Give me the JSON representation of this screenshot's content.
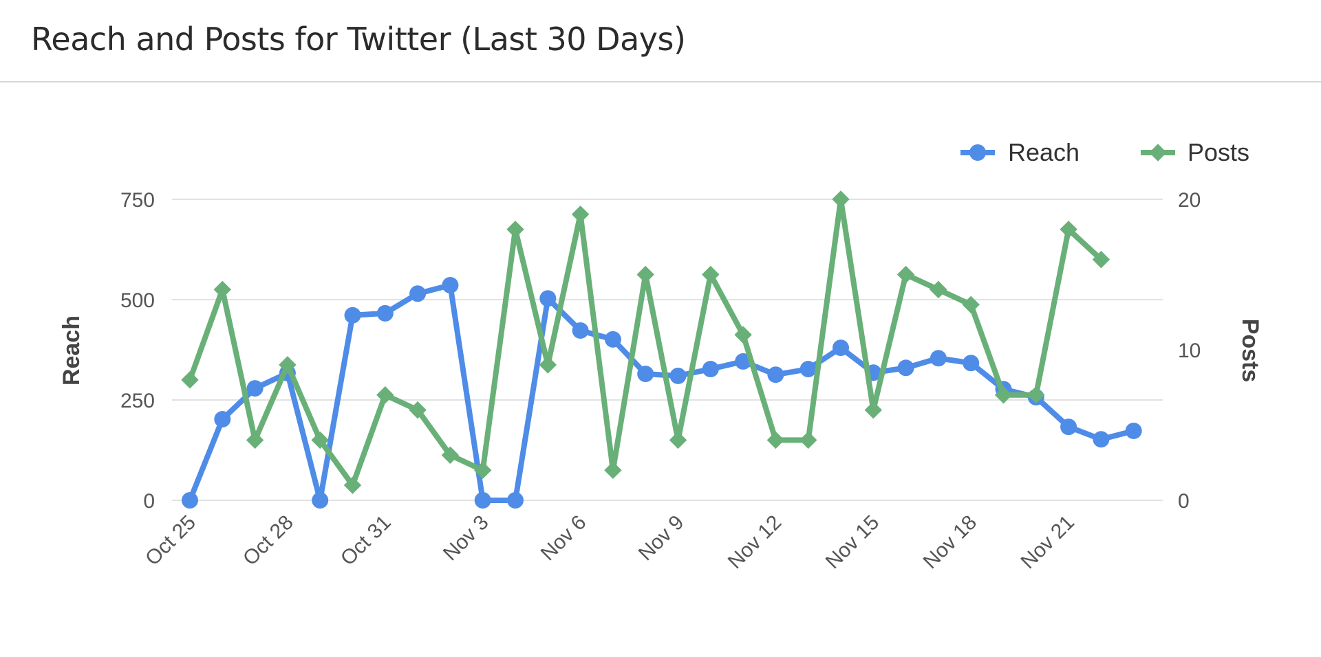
{
  "header": {
    "title": "Reach and Posts for Twitter (Last 30 Days)"
  },
  "legend": [
    {
      "label": "Reach",
      "color": "#4e8ce8",
      "marker": "circle"
    },
    {
      "label": "Posts",
      "color": "#68b078",
      "marker": "diamond"
    }
  ],
  "axes": {
    "left": {
      "title": "Reach",
      "ticks": [
        "0",
        "250",
        "500",
        "750"
      ]
    },
    "right": {
      "title": "Posts",
      "ticks": [
        "0",
        "10",
        "20"
      ]
    },
    "x": {
      "ticks": [
        "Oct 25",
        "Oct 28",
        "Oct 31",
        "Nov 3",
        "Nov 6",
        "Nov 9",
        "Nov 12",
        "Nov 15",
        "Nov 18",
        "Nov 21"
      ]
    }
  },
  "chart_data": {
    "type": "line",
    "title": "Reach and Posts for Twitter (Last 30 Days)",
    "xlabel": "",
    "ylabel": "Reach",
    "y2label": "Posts",
    "ylim": [
      0,
      750
    ],
    "y2lim": [
      0,
      20
    ],
    "grid": true,
    "legend_position": "top-right",
    "x": [
      "Oct 25",
      "Oct 26",
      "Oct 27",
      "Oct 28",
      "Oct 29",
      "Oct 30",
      "Oct 31",
      "Nov 1",
      "Nov 2",
      "Nov 3",
      "Nov 4",
      "Nov 5",
      "Nov 6",
      "Nov 7",
      "Nov 8",
      "Nov 9",
      "Nov 10",
      "Nov 11",
      "Nov 12",
      "Nov 13",
      "Nov 14",
      "Nov 15",
      "Nov 16",
      "Nov 17",
      "Nov 18",
      "Nov 19",
      "Nov 20",
      "Nov 21",
      "Nov 22",
      "Nov 23"
    ],
    "series": [
      {
        "name": "Reach",
        "axis": "left",
        "color": "#4e8ce8",
        "values": [
          0,
          202,
          279,
          317,
          0,
          461,
          466,
          515,
          536,
          0,
          0,
          503,
          423,
          401,
          315,
          310,
          327,
          346,
          313,
          327,
          380,
          318,
          330,
          354,
          342,
          277,
          257,
          183,
          152,
          173
        ]
      },
      {
        "name": "Posts",
        "axis": "right",
        "color": "#68b078",
        "values": [
          8,
          14,
          4,
          9,
          4,
          1,
          7,
          6,
          3,
          2,
          18,
          9,
          19,
          2,
          15,
          4,
          15,
          11,
          4,
          4,
          20,
          6,
          15,
          14,
          13,
          7,
          7,
          18,
          16,
          null
        ]
      }
    ]
  }
}
